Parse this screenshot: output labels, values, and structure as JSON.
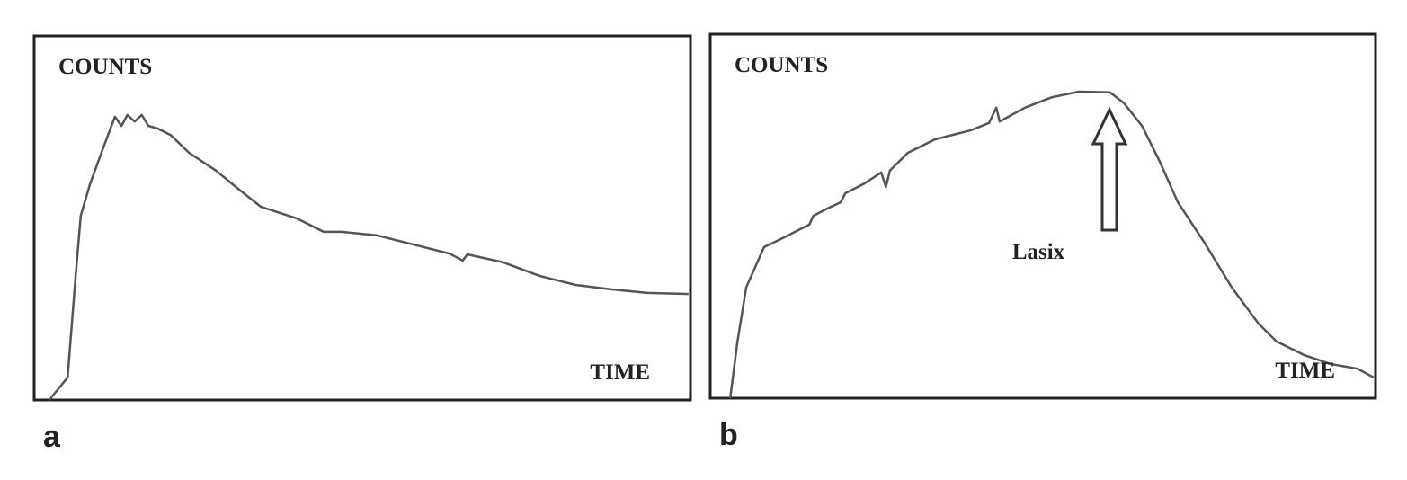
{
  "chart_data": [
    {
      "type": "line",
      "panel_label": "a",
      "y_label": "COUNTS",
      "x_label": "TIME",
      "color": "#555555",
      "xlim": [
        0,
        100
      ],
      "ylim": [
        0,
        100
      ],
      "x": [
        2.3,
        5.1,
        6.4,
        7.1,
        8.5,
        10.5,
        12.3,
        13.3,
        14.2,
        15.3,
        16.4,
        17.4,
        18.8,
        20.8,
        23.6,
        27.7,
        31.1,
        34.5,
        40.0,
        44.1,
        46.8,
        52.3,
        57.8,
        63.3,
        65.3,
        66.0,
        71.5,
        77.0,
        82.5,
        87.9,
        93.4,
        99.7
      ],
      "values": [
        0,
        6.2,
        35.8,
        50.6,
        59.3,
        69.1,
        77.8,
        75.3,
        78.3,
        76.5,
        78.3,
        75.3,
        74.6,
        72.8,
        67.9,
        63.0,
        58.0,
        53.1,
        49.9,
        46.2,
        46.2,
        45.2,
        42.7,
        40.2,
        38.3,
        40.0,
        37.8,
        34.1,
        31.6,
        30.4,
        29.4,
        29.1
      ]
    },
    {
      "type": "line",
      "panel_label": "b",
      "y_label": "COUNTS",
      "x_label": "TIME",
      "color": "#555555",
      "xlim": [
        0,
        100
      ],
      "ylim": [
        0,
        100
      ],
      "x": [
        3.0,
        4.1,
        5.4,
        8.1,
        10.8,
        14.9,
        15.5,
        17.6,
        19.6,
        20.3,
        23.0,
        25.7,
        26.4,
        27.0,
        29.7,
        33.8,
        39.2,
        41.9,
        43.0,
        43.5,
        47.3,
        51.4,
        55.4,
        60.1,
        62.2,
        64.9,
        67.6,
        70.3,
        74.3,
        78.4,
        82.4,
        85.1,
        89.2,
        93.2,
        97.3,
        99.7
      ],
      "values": [
        0,
        15.6,
        30.4,
        41.5,
        43.9,
        47.7,
        50.1,
        52.1,
        53.8,
        56.3,
        58.8,
        62.0,
        58.0,
        62.5,
        67.4,
        71.1,
        73.6,
        75.6,
        79.8,
        76.0,
        79.8,
        82.7,
        84.2,
        84.0,
        81.0,
        74.8,
        64.9,
        53.8,
        42.7,
        30.4,
        20.5,
        15.6,
        11.9,
        9.4,
        8.1,
        5.7
      ],
      "annotation": "Lasix"
    }
  ]
}
